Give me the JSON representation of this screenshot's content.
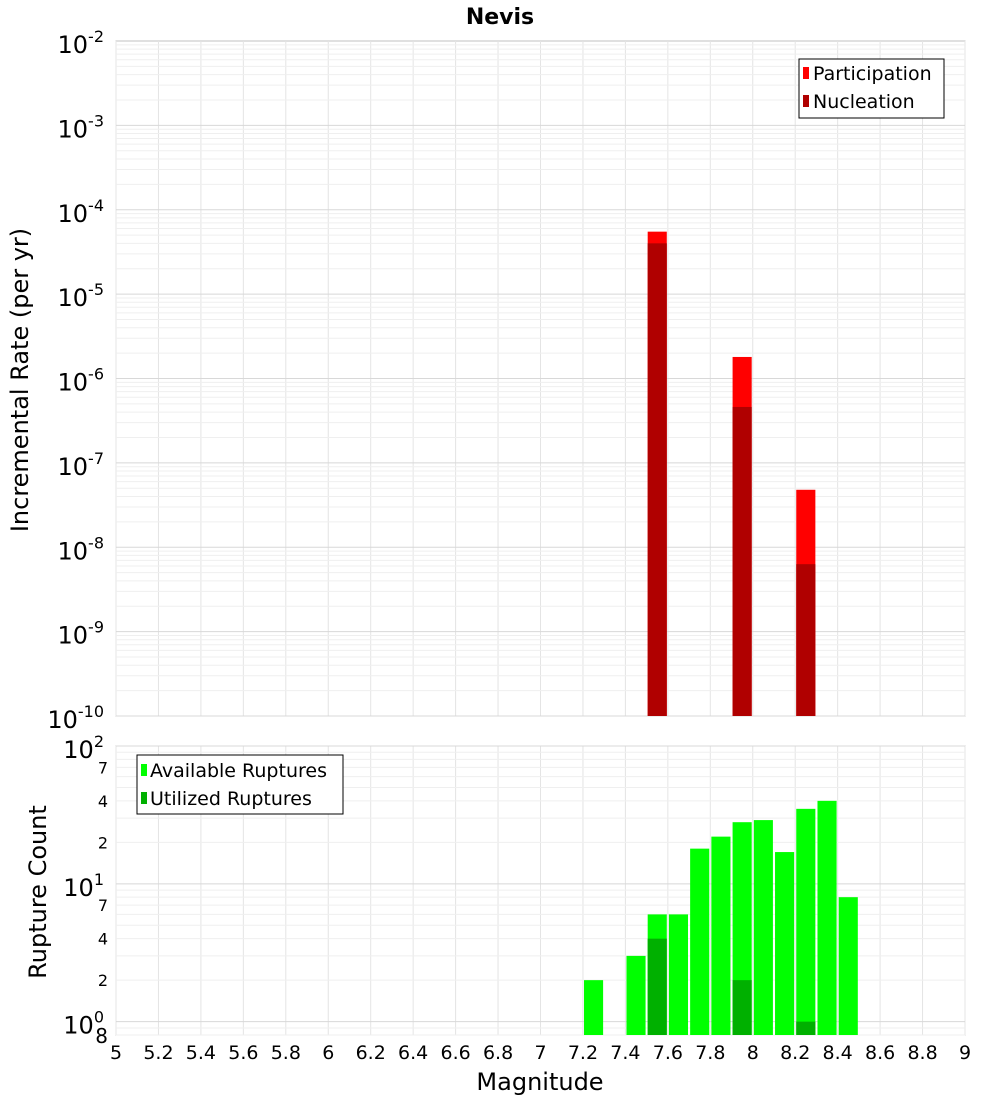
{
  "chart_data": [
    {
      "type": "bar",
      "title": "Nevis",
      "ylabel": "Incremental Rate (per yr)",
      "xlabel": "",
      "yscale": "log",
      "ylim": [
        1e-10,
        0.01
      ],
      "xlim": [
        5,
        9
      ],
      "y_ticks": [
        {
          "base": "10",
          "exp": "-2"
        },
        {
          "base": "10",
          "exp": "-3"
        },
        {
          "base": "10",
          "exp": "-4"
        },
        {
          "base": "10",
          "exp": "-5"
        },
        {
          "base": "10",
          "exp": "-6"
        },
        {
          "base": "10",
          "exp": "-7"
        },
        {
          "base": "10",
          "exp": "-8"
        },
        {
          "base": "10",
          "exp": "-9"
        },
        {
          "base": "10",
          "exp": "-10"
        }
      ],
      "legend_position": "top-right",
      "series": [
        {
          "name": "Participation",
          "color": "#ff0000",
          "points": [
            {
              "x": 7.55,
              "y": 5.5e-05
            },
            {
              "x": 7.95,
              "y": 1.8e-06
            },
            {
              "x": 8.25,
              "y": 4.8e-08
            }
          ]
        },
        {
          "name": "Nucleation",
          "color": "#b00000",
          "points": [
            {
              "x": 7.55,
              "y": 4e-05
            },
            {
              "x": 7.95,
              "y": 4.6e-07
            },
            {
              "x": 8.25,
              "y": 6.3e-09
            }
          ]
        }
      ]
    },
    {
      "type": "bar",
      "title": "",
      "ylabel": "Rupture Count",
      "xlabel": "Magnitude",
      "yscale": "log",
      "ylim": [
        0.8,
        100
      ],
      "xlim": [
        5,
        9
      ],
      "x_ticks": [
        "5",
        "5.2",
        "5.4",
        "5.6",
        "5.8",
        "6",
        "6.2",
        "6.4",
        "6.6",
        "6.8",
        "7",
        "7.2",
        "7.4",
        "7.6",
        "7.8",
        "8",
        "8.2",
        "8.4",
        "8.6",
        "8.8",
        "9"
      ],
      "y_major_ticks": [
        {
          "base": "10",
          "exp": "2"
        },
        {
          "base": "10",
          "exp": "1"
        },
        {
          "base": "10",
          "exp": "0"
        }
      ],
      "y_minor_ticks": [
        "7",
        "4",
        "2",
        "7",
        "4",
        "2",
        "8"
      ],
      "legend_position": "top-left",
      "series": [
        {
          "name": "Available Ruptures",
          "color": "#00ff00",
          "points": [
            {
              "x": 7.25,
              "y": 2
            },
            {
              "x": 7.45,
              "y": 3
            },
            {
              "x": 7.55,
              "y": 6
            },
            {
              "x": 7.65,
              "y": 6
            },
            {
              "x": 7.75,
              "y": 18
            },
            {
              "x": 7.85,
              "y": 22
            },
            {
              "x": 7.95,
              "y": 28
            },
            {
              "x": 8.05,
              "y": 29
            },
            {
              "x": 8.15,
              "y": 17
            },
            {
              "x": 8.25,
              "y": 35
            },
            {
              "x": 8.35,
              "y": 40
            },
            {
              "x": 8.45,
              "y": 8
            }
          ]
        },
        {
          "name": "Utilized Ruptures",
          "color": "#00b000",
          "points": [
            {
              "x": 7.55,
              "y": 4
            },
            {
              "x": 7.95,
              "y": 2
            },
            {
              "x": 8.25,
              "y": 1
            }
          ]
        }
      ]
    }
  ]
}
